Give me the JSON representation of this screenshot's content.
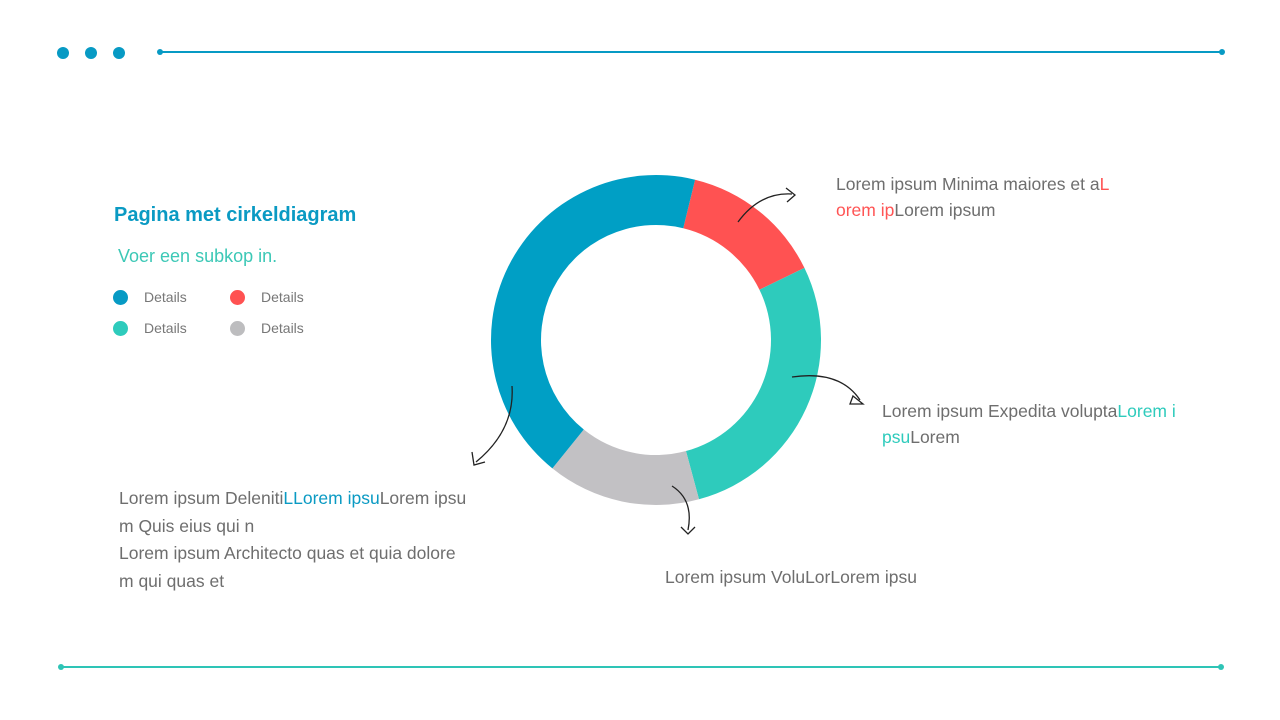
{
  "colors": {
    "blue": "#009fc5",
    "red": "#ff5252",
    "teal": "#2ecbbc",
    "gray": "#c2c1c4",
    "header_line": "#079ac4",
    "footer_line": "#2ec4b6"
  },
  "header": {
    "icon": "three-dots-icon"
  },
  "title": "Pagina met cirkeldiagram",
  "subtitle": "Voer een subkop in.",
  "legend": [
    {
      "label": "Details",
      "color": "#079ac4"
    },
    {
      "label": "Details",
      "color": "#ff5252"
    },
    {
      "label": "Details",
      "color": "#2ecbbc"
    },
    {
      "label": "Details",
      "color": "#bdbdbf"
    }
  ],
  "notes": {
    "red": {
      "l1a": "Lorem ipsum Minima maiores et a",
      "l1b": "L",
      "l2a": "orem ip",
      "l2b": "Lorem ipsum"
    },
    "teal": {
      "l1a": "Lorem ipsum Expedita volupta",
      "l1b": "Lorem i",
      "l2a": "psu",
      "l2b": "Lorem"
    },
    "gray": {
      "l1": "Lorem ipsum VoluLorLorem ipsu"
    },
    "blue": {
      "l1a": "Lorem ipsum Deleniti",
      "l1b": "LLorem ipsu",
      "l1c": "Lorem ipsu",
      "l2": "m Quis eius qui n",
      "l3": "Lorem ipsum Architecto quas et quia dolore",
      "l4": "m qui quas et"
    }
  },
  "chart_data": {
    "type": "pie",
    "donut": true,
    "values": [
      14,
      28,
      15,
      43
    ],
    "colors": [
      "#ff5252",
      "#2ecbbc",
      "#c2c1c4",
      "#009fc5"
    ],
    "title": ""
  }
}
